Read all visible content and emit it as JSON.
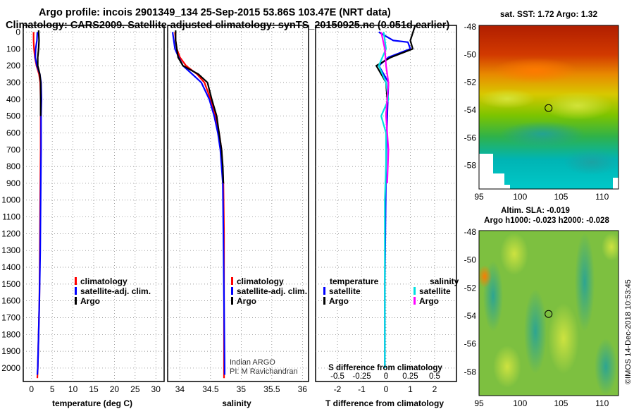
{
  "title_line1": "Argo profile: incois 2901349_134 25-Sep-2015 53.86S 103.47E (NRT data)",
  "title_line2": "Climatology: CARS2009. Satellite-adjusted climatology: synTS_20150925.nc (0.051d earlier)",
  "stamp": "©IMOS 14-Dec-2018 10:53:45",
  "colors": {
    "climatology": "#ff0000",
    "satellite": "#0000ff",
    "argo": "#000000",
    "sat_salinity": "#00e0e0",
    "argo_salinity": "#ff00ff"
  },
  "chart_data": [
    {
      "type": "line",
      "id": "temperature",
      "xlabel": "temperature (deg C)",
      "ylabel": "",
      "xlim": [
        -2,
        32
      ],
      "ylim": [
        2080,
        -40
      ],
      "xticks": [
        0,
        5,
        10,
        15,
        20,
        25,
        30
      ],
      "yticks": [
        0,
        100,
        200,
        300,
        400,
        500,
        600,
        700,
        800,
        900,
        1000,
        1100,
        1200,
        1300,
        1400,
        1500,
        1600,
        1700,
        1800,
        1900,
        2000
      ],
      "grid": true,
      "legend": [
        "climatology",
        "satellite-adj. clim.",
        "Argo"
      ],
      "series": [
        {
          "name": "climatology",
          "color": "red",
          "points": [
            [
              0.5,
              0
            ],
            [
              0.5,
              50
            ],
            [
              0.6,
              100
            ],
            [
              0.8,
              150
            ],
            [
              1.2,
              200
            ],
            [
              1.8,
              250
            ],
            [
              2.1,
              300
            ],
            [
              2.2,
              400
            ],
            [
              2.2,
              500
            ],
            [
              2.2,
              700
            ],
            [
              2.1,
              1000
            ],
            [
              2.0,
              1300
            ],
            [
              1.9,
              1600
            ],
            [
              1.7,
              1800
            ],
            [
              1.5,
              2000
            ],
            [
              1.4,
              2060
            ]
          ]
        },
        {
          "name": "satellite-adj. clim.",
          "color": "blue",
          "points": [
            [
              1.4,
              0
            ],
            [
              1.3,
              50
            ],
            [
              1.0,
              100
            ],
            [
              0.9,
              150
            ],
            [
              1.3,
              200
            ],
            [
              2.0,
              250
            ],
            [
              2.3,
              300
            ],
            [
              2.4,
              400
            ],
            [
              2.3,
              500
            ],
            [
              2.3,
              700
            ],
            [
              2.2,
              1000
            ],
            [
              2.1,
              1300
            ],
            [
              1.9,
              1600
            ],
            [
              1.7,
              1800
            ],
            [
              1.5,
              2000
            ],
            [
              1.4,
              2040
            ]
          ]
        },
        {
          "name": "Argo",
          "color": "black",
          "points": [
            [
              1.7,
              -10
            ],
            [
              1.8,
              50
            ],
            [
              1.7,
              100
            ],
            [
              1.5,
              150
            ],
            [
              1.5,
              200
            ],
            [
              2.0,
              250
            ],
            [
              2.2,
              300
            ],
            [
              2.2,
              400
            ],
            [
              2.2,
              500
            ]
          ]
        }
      ]
    },
    {
      "type": "line",
      "id": "salinity",
      "xlabel": "salinity",
      "xlim": [
        33.8,
        36.1
      ],
      "ylim": [
        2080,
        -40
      ],
      "xticks": [
        34,
        34.5,
        35,
        35.5,
        36
      ],
      "grid": true,
      "legend": [
        "climatology",
        "satellite-adj. clim.",
        "Argo"
      ],
      "annotation": [
        "Indian ARGO",
        "PI: M Ravichandran"
      ],
      "series": [
        {
          "name": "climatology",
          "color": "red",
          "points": [
            [
              33.92,
              0
            ],
            [
              33.93,
              50
            ],
            [
              33.95,
              100
            ],
            [
              34.0,
              150
            ],
            [
              34.1,
              200
            ],
            [
              34.28,
              250
            ],
            [
              34.4,
              300
            ],
            [
              34.5,
              400
            ],
            [
              34.58,
              500
            ],
            [
              34.64,
              600
            ],
            [
              34.68,
              700
            ],
            [
              34.71,
              900
            ],
            [
              34.72,
              1200
            ],
            [
              34.72,
              1600
            ],
            [
              34.72,
              2000
            ],
            [
              34.72,
              2060
            ]
          ]
        },
        {
          "name": "satellite-adj. clim.",
          "color": "blue",
          "points": [
            [
              33.88,
              0
            ],
            [
              33.9,
              50
            ],
            [
              33.92,
              100
            ],
            [
              33.98,
              150
            ],
            [
              34.05,
              200
            ],
            [
              34.2,
              250
            ],
            [
              34.35,
              300
            ],
            [
              34.48,
              400
            ],
            [
              34.56,
              500
            ],
            [
              34.62,
              600
            ],
            [
              34.66,
              700
            ],
            [
              34.7,
              900
            ],
            [
              34.71,
              1200
            ],
            [
              34.72,
              1600
            ],
            [
              34.73,
              2000
            ],
            [
              34.73,
              2040
            ]
          ]
        },
        {
          "name": "Argo",
          "color": "black",
          "points": [
            [
              33.93,
              -10
            ],
            [
              33.93,
              50
            ],
            [
              33.95,
              100
            ],
            [
              33.97,
              150
            ],
            [
              34.05,
              200
            ],
            [
              34.3,
              250
            ],
            [
              34.45,
              300
            ],
            [
              34.52,
              400
            ],
            [
              34.6,
              500
            ],
            [
              34.64,
              600
            ],
            [
              34.68,
              700
            ],
            [
              34.7,
              800
            ],
            [
              34.71,
              900
            ]
          ]
        }
      ]
    },
    {
      "type": "line",
      "id": "difference",
      "xlabel": "T difference from climatology",
      "xlabel_top": "S difference from climatology",
      "xlim": [
        -2.9,
        2.9
      ],
      "ylim": [
        2080,
        -40
      ],
      "xticks": [
        -2,
        -1,
        0,
        1,
        2
      ],
      "xticks_top": [
        "-0.5",
        "-0.25",
        "0",
        "0.25",
        "0.5"
      ],
      "grid": true,
      "legend_temperature_title": "temperature",
      "legend_salinity_title": "salinity",
      "legend_temperature": [
        "satellite",
        "Argo"
      ],
      "legend_salinity": [
        "satellite",
        "Argo"
      ],
      "series": [
        {
          "name": "temperature satellite",
          "color": "blue",
          "points": [
            [
              -0.3,
              0
            ],
            [
              0.3,
              50
            ],
            [
              0.9,
              60
            ],
            [
              1.0,
              100
            ],
            [
              0.1,
              150
            ],
            [
              -0.3,
              200
            ],
            [
              -0.1,
              250
            ],
            [
              0.1,
              300
            ],
            [
              0.05,
              500
            ],
            [
              0.0,
              800
            ],
            [
              -0.05,
              1500
            ],
            [
              -0.05,
              2000
            ]
          ]
        },
        {
          "name": "temperature Argo",
          "color": "black",
          "points": [
            [
              1.2,
              -40
            ],
            [
              1.0,
              50
            ],
            [
              1.1,
              100
            ],
            [
              0.2,
              150
            ],
            [
              -0.4,
              200
            ],
            [
              0.0,
              300
            ],
            [
              0.05,
              400
            ],
            [
              0.0,
              500
            ]
          ]
        },
        {
          "name": "salinity satellite",
          "color": "cyan",
          "points": [
            [
              -0.1,
              0
            ],
            [
              0.0,
              100
            ],
            [
              -0.3,
              200
            ],
            [
              0.0,
              300
            ],
            [
              0.1,
              400
            ],
            [
              -0.2,
              500
            ],
            [
              0.0,
              600
            ],
            [
              0.0,
              800
            ],
            [
              -0.05,
              1000
            ],
            [
              -0.05,
              2000
            ]
          ]
        },
        {
          "name": "salinity Argo",
          "color": "magenta",
          "points": [
            [
              -0.2,
              0
            ],
            [
              -0.05,
              100
            ],
            [
              0.0,
              200
            ],
            [
              0.1,
              300
            ],
            [
              0.0,
              500
            ],
            [
              0.1,
              700
            ],
            [
              0.05,
              900
            ]
          ]
        }
      ]
    },
    {
      "type": "heatmap",
      "id": "sst-map",
      "title": "sat. SST: 1.72 Argo: 1.32",
      "xlim": [
        95,
        112
      ],
      "ylim": [
        -59.7,
        -47.9
      ],
      "xticks": [
        95,
        100,
        105,
        110
      ],
      "yticks": [
        -48,
        -50,
        -52,
        -54,
        -56,
        -58
      ],
      "profile_location": [
        103.47,
        -53.86
      ]
    },
    {
      "type": "heatmap",
      "id": "sla-map",
      "title_line1": "Altim. SLA: -0.019",
      "title_line2": "Argo h1000: -0.023 h2000: -0.028",
      "xlim": [
        95,
        112
      ],
      "ylim": [
        -59.7,
        -47.9
      ],
      "xticks": [
        95,
        100,
        105,
        110
      ],
      "yticks": [
        -48,
        -50,
        -52,
        -54,
        -56,
        -58
      ],
      "profile_location": [
        103.47,
        -53.86
      ]
    }
  ]
}
